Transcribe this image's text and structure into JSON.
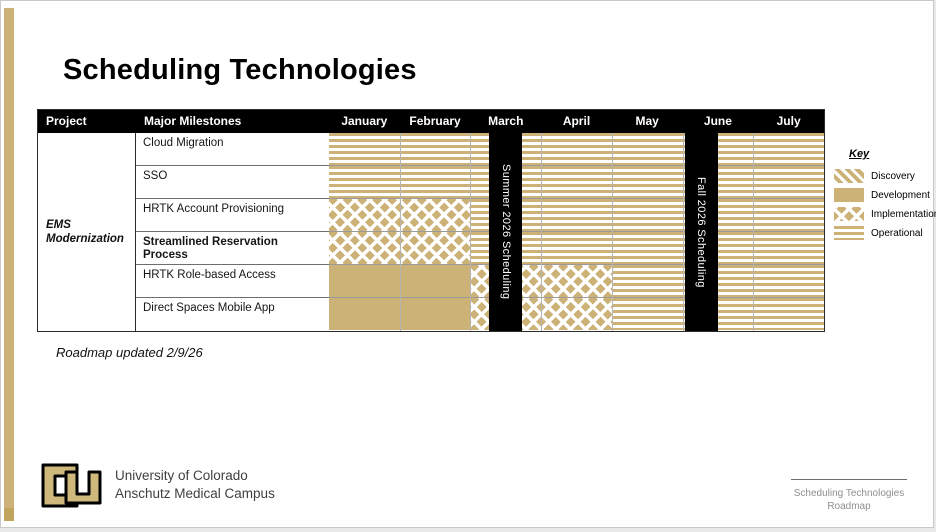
{
  "slide": {
    "title": "Scheduling Technologies",
    "updated_note": "Roadmap updated 2/9/26"
  },
  "colors": {
    "gold": "#CCB277",
    "cu_gold": "#CFB87C"
  },
  "table": {
    "project_header": "Project",
    "milestones_header": "Major Milestones",
    "project_name": "EMS Modernization"
  },
  "legend_title": "Key",
  "footer": {
    "org_line1": "University of Colorado",
    "org_line2": "Anschutz Medical Campus",
    "doc_line1": "Scheduling Technologies",
    "doc_line2": "Roadmap"
  },
  "chart_data": {
    "type": "table",
    "subtype": "gantt-roadmap",
    "title": "Scheduling Technologies",
    "project": "EMS Modernization",
    "columns": [
      "January",
      "February",
      "March",
      "April",
      "May",
      "June",
      "July"
    ],
    "rows": [
      {
        "milestone": "Cloud Migration",
        "emphasis": false,
        "segments": [
          {
            "phase": "Operational",
            "from": "January",
            "to": "July"
          }
        ]
      },
      {
        "milestone": "SSO",
        "emphasis": false,
        "segments": [
          {
            "phase": "Operational",
            "from": "January",
            "to": "July"
          }
        ]
      },
      {
        "milestone": "HRTK Account Provisioning",
        "emphasis": false,
        "segments": [
          {
            "phase": "Implementation",
            "from": "January",
            "to": "February"
          },
          {
            "phase": "Operational",
            "from": "March",
            "to": "July"
          }
        ]
      },
      {
        "milestone": "Streamlined Reservation Process",
        "emphasis": true,
        "segments": [
          {
            "phase": "Implementation",
            "from": "January",
            "to": "February"
          },
          {
            "phase": "Operational",
            "from": "March",
            "to": "July"
          }
        ]
      },
      {
        "milestone": "HRTK Role-based Access",
        "emphasis": false,
        "segments": [
          {
            "phase": "Development",
            "from": "January",
            "to": "February"
          },
          {
            "phase": "Implementation",
            "from": "March",
            "to": "April"
          },
          {
            "phase": "Operational",
            "from": "May",
            "to": "July"
          }
        ]
      },
      {
        "milestone": "Direct Spaces Mobile App",
        "emphasis": false,
        "segments": [
          {
            "phase": "Development",
            "from": "January",
            "to": "February"
          },
          {
            "phase": "Implementation",
            "from": "March",
            "to": "April"
          },
          {
            "phase": "Operational",
            "from": "May",
            "to": "July"
          }
        ]
      }
    ],
    "event_bars": [
      {
        "label": "Summer 2026 Scheduling",
        "month": "March",
        "align": "center"
      },
      {
        "label": "Fall 2026 Scheduling",
        "month": "June",
        "align": "start"
      }
    ],
    "legend": [
      {
        "label": "Discovery",
        "pattern": "diagonal-stripes"
      },
      {
        "label": "Development",
        "pattern": "solid"
      },
      {
        "label": "Implementation",
        "pattern": "diamonds"
      },
      {
        "label": "Operational",
        "pattern": "horizontal-stripes"
      }
    ],
    "legend_position": "right",
    "grid": true
  }
}
